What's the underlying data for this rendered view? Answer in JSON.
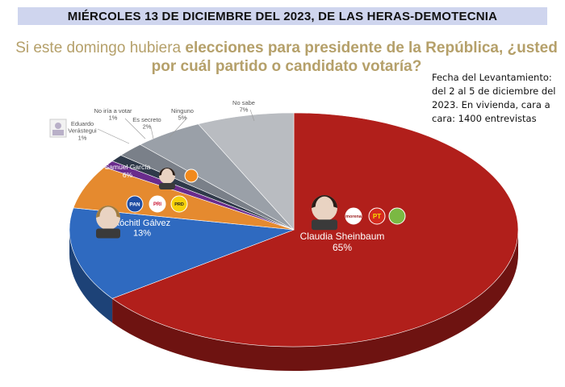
{
  "header": {
    "banner": "MIÉRCOLES 13 DE DICIEMBRE DEL 2023, DE LAS HERAS-DEMOTECNIA",
    "question_part1": "Si este domingo hubiera ",
    "question_part2": "elecciones para presidente de la República, ¿usted",
    "question_part3": "por cuál partido o candidato votaría?"
  },
  "note": "Fecha del Levantamiento: del 2 al 5 de diciembre del 2023. En vivienda, cara a cara: 1400 entrevistas",
  "party_logos": {
    "pan": "PAN",
    "pri": "PRI",
    "prd": "PRD",
    "morena": "morena",
    "pt": "PT"
  },
  "colors": {
    "banner_bg": "#cfd5ee",
    "question": "#b5a06a",
    "sheinbaum": "#b11f1b",
    "galvez": "#2f6ac0",
    "garcia": "#e58a2f",
    "verastegui": "#6a2c8c",
    "no_votar": "#2f3a4a",
    "secreto": "#7a8089",
    "ninguno": "#9aa0a8",
    "no_sabe": "#b9bcc1"
  },
  "chart_data": {
    "type": "pie",
    "title": "Si este domingo hubiera elecciones para presidente de la República, ¿usted por cuál partido o candidato votaría?",
    "unit": "%",
    "slices": [
      {
        "label": "Claudia Sheinbaum",
        "value": 65,
        "display": "65%",
        "color": "#b11f1b"
      },
      {
        "label": "Xóchitl Gálvez",
        "value": 13,
        "display": "13%",
        "color": "#2f6ac0"
      },
      {
        "label": "Samuel García",
        "value": 6,
        "display": "6%",
        "color": "#e58a2f"
      },
      {
        "label": "Eduardo Verástegui",
        "value": 1,
        "display": "1%",
        "color": "#6a2c8c"
      },
      {
        "label": "No iría a votar",
        "value": 1,
        "display": "1%",
        "color": "#2f3a4a"
      },
      {
        "label": "Es secreto",
        "value": 2,
        "display": "2%",
        "color": "#7a8089"
      },
      {
        "label": "Ninguno",
        "value": 5,
        "display": "5%",
        "color": "#9aa0a8"
      },
      {
        "label": "No sabe",
        "value": 7,
        "display": "7%",
        "color": "#b9bcc1"
      }
    ]
  }
}
